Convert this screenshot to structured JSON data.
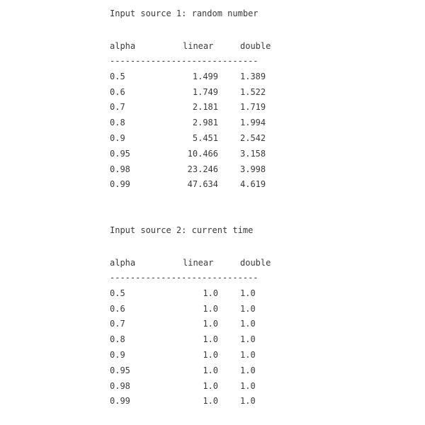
{
  "sections": [
    {
      "title": "Input source 1: random number",
      "headers": {
        "alpha": "alpha",
        "linear": "linear",
        "double": "double"
      },
      "separator": "-----------------------------",
      "rows": [
        {
          "alpha": "0.5",
          "linear": "1.499",
          "double": "1.389"
        },
        {
          "alpha": "0.6",
          "linear": "1.749",
          "double": "1.522"
        },
        {
          "alpha": "0.7",
          "linear": "2.181",
          "double": "1.719"
        },
        {
          "alpha": "0.8",
          "linear": "2.981",
          "double": "1.994"
        },
        {
          "alpha": "0.9",
          "linear": "5.451",
          "double": "2.542"
        },
        {
          "alpha": "0.95",
          "linear": "10.466",
          "double": "3.158"
        },
        {
          "alpha": "0.98",
          "linear": "23.246",
          "double": "3.998"
        },
        {
          "alpha": "0.99",
          "linear": "47.634",
          "double": "4.619"
        }
      ]
    },
    {
      "title": "Input source 2: current time",
      "headers": {
        "alpha": "alpha",
        "linear": "linear",
        "double": "double"
      },
      "separator": "-----------------------------",
      "rows": [
        {
          "alpha": "0.5",
          "linear": "1.0",
          "double": "1.0"
        },
        {
          "alpha": "0.6",
          "linear": "1.0",
          "double": "1.0"
        },
        {
          "alpha": "0.7",
          "linear": "1.0",
          "double": "1.0"
        },
        {
          "alpha": "0.8",
          "linear": "1.0",
          "double": "1.0"
        },
        {
          "alpha": "0.9",
          "linear": "1.0",
          "double": "1.0"
        },
        {
          "alpha": "0.95",
          "linear": "1.0",
          "double": "1.0"
        },
        {
          "alpha": "0.98",
          "linear": "1.0",
          "double": "1.0"
        },
        {
          "alpha": "0.99",
          "linear": "1.0",
          "double": "1.0"
        }
      ]
    }
  ]
}
